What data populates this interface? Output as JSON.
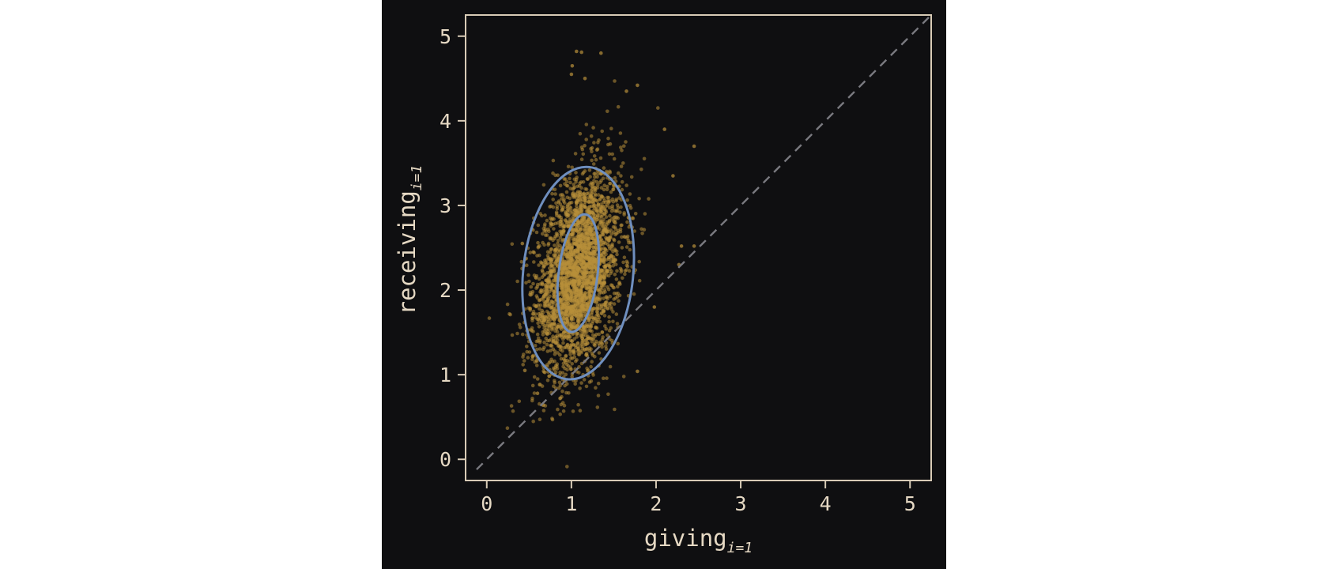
{
  "chart_data": {
    "type": "scatter",
    "title": "",
    "xlabel": {
      "text": "giving",
      "subscript": "i=1"
    },
    "ylabel": {
      "text": "receiving",
      "subscript": "i=1"
    },
    "xlim": [
      -0.25,
      5.25
    ],
    "ylim": [
      -0.25,
      5.25
    ],
    "x_ticks": [
      0,
      1,
      2,
      3,
      4,
      5
    ],
    "y_ticks": [
      0,
      1,
      2,
      3,
      4,
      5
    ],
    "grid": false,
    "legend": "none",
    "series": [
      {
        "kind": "points",
        "n_points": 3000,
        "mean": [
          1.08,
          2.2
        ],
        "sd": [
          0.26,
          0.6
        ],
        "correlation": 0.33,
        "outliers": [
          [
            1.06,
            4.82
          ],
          [
            1.12,
            4.81
          ],
          [
            1.35,
            4.8
          ],
          [
            1.01,
            4.65
          ],
          [
            1.0,
            4.55
          ],
          [
            1.16,
            4.5
          ],
          [
            1.78,
            4.42
          ],
          [
            1.65,
            4.35
          ],
          [
            2.45,
            3.7
          ],
          [
            2.1,
            3.9
          ],
          [
            0.42,
            2.55
          ],
          [
            0.55,
            2.45
          ],
          [
            2.3,
            2.52
          ],
          [
            2.45,
            2.52
          ],
          [
            2.27,
            2.3
          ],
          [
            0.45,
            1.05
          ],
          [
            0.6,
            0.78
          ],
          [
            1.78,
            1.04
          ],
          [
            1.98,
            1.8
          ],
          [
            2.2,
            3.35
          ]
        ]
      },
      {
        "kind": "ellipse",
        "center": [
          1.08,
          2.2
        ],
        "rx_half_width_x": 0.65,
        "ry_half_height_y": 1.26,
        "tilt_deg": 6
      },
      {
        "kind": "ellipse",
        "center": [
          1.08,
          2.2
        ],
        "rx_half_width_x": 0.23,
        "ry_half_height_y": 0.7,
        "tilt_deg": 7
      },
      {
        "kind": "reference_line",
        "from": [
          -0.12,
          -0.12
        ],
        "to": [
          5.25,
          5.25
        ]
      }
    ]
  },
  "colors": {
    "background": "#0f0f11",
    "frame": "#d8cbb6",
    "text": "#e6d9c4",
    "points": "#b8903a",
    "ellipse": "#6f8fbf",
    "diagonal": "#7a7a80"
  }
}
